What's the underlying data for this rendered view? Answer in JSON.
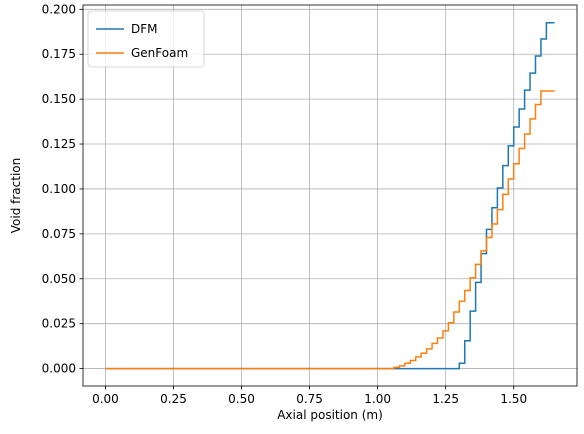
{
  "chart_data": {
    "type": "line",
    "step": true,
    "xlabel": "Axial position (m)",
    "ylabel": "Void fraction",
    "xlim": [
      -0.0825,
      1.7325
    ],
    "ylim": [
      -0.0097,
      0.2024
    ],
    "xticks": [
      0.0,
      0.25,
      0.5,
      0.75,
      1.0,
      1.25,
      1.5
    ],
    "xtick_labels": [
      "0.00",
      "0.25",
      "0.50",
      "0.75",
      "1.00",
      "1.25",
      "1.50"
    ],
    "yticks": [
      0.0,
      0.025,
      0.05,
      0.075,
      0.1,
      0.125,
      0.15,
      0.175,
      0.2
    ],
    "ytick_labels": [
      "0.000",
      "0.025",
      "0.050",
      "0.075",
      "0.100",
      "0.125",
      "0.150",
      "0.175",
      "0.200"
    ],
    "grid": true,
    "legend_position": "top-left",
    "series": [
      {
        "name": "DFM",
        "color": "#1f77b4",
        "x": [
          0.0,
          1.3,
          1.32,
          1.34,
          1.36,
          1.38,
          1.4,
          1.42,
          1.44,
          1.46,
          1.48,
          1.5,
          1.52,
          1.54,
          1.56,
          1.58,
          1.6,
          1.62,
          1.65
        ],
        "y": [
          0.0,
          0.003,
          0.0155,
          0.032,
          0.048,
          0.064,
          0.0775,
          0.0895,
          0.1005,
          0.113,
          0.124,
          0.1345,
          0.1445,
          0.155,
          0.1645,
          0.174,
          0.1835,
          0.1925,
          0.1925
        ]
      },
      {
        "name": "GenFoam",
        "color": "#ff7f0e",
        "x": [
          0.0,
          1.06,
          1.08,
          1.1,
          1.12,
          1.14,
          1.16,
          1.18,
          1.2,
          1.22,
          1.24,
          1.26,
          1.28,
          1.3,
          1.32,
          1.34,
          1.36,
          1.38,
          1.4,
          1.42,
          1.44,
          1.46,
          1.48,
          1.5,
          1.52,
          1.54,
          1.56,
          1.58,
          1.6,
          1.62,
          1.65
        ],
        "y": [
          0.0,
          0.0007,
          0.0015,
          0.003,
          0.0045,
          0.0065,
          0.0085,
          0.011,
          0.014,
          0.017,
          0.021,
          0.0255,
          0.0315,
          0.0375,
          0.0435,
          0.0505,
          0.058,
          0.0655,
          0.073,
          0.0805,
          0.0885,
          0.097,
          0.1055,
          0.114,
          0.1225,
          0.1305,
          0.139,
          0.147,
          0.1545,
          0.1545,
          0.1545
        ]
      }
    ]
  }
}
